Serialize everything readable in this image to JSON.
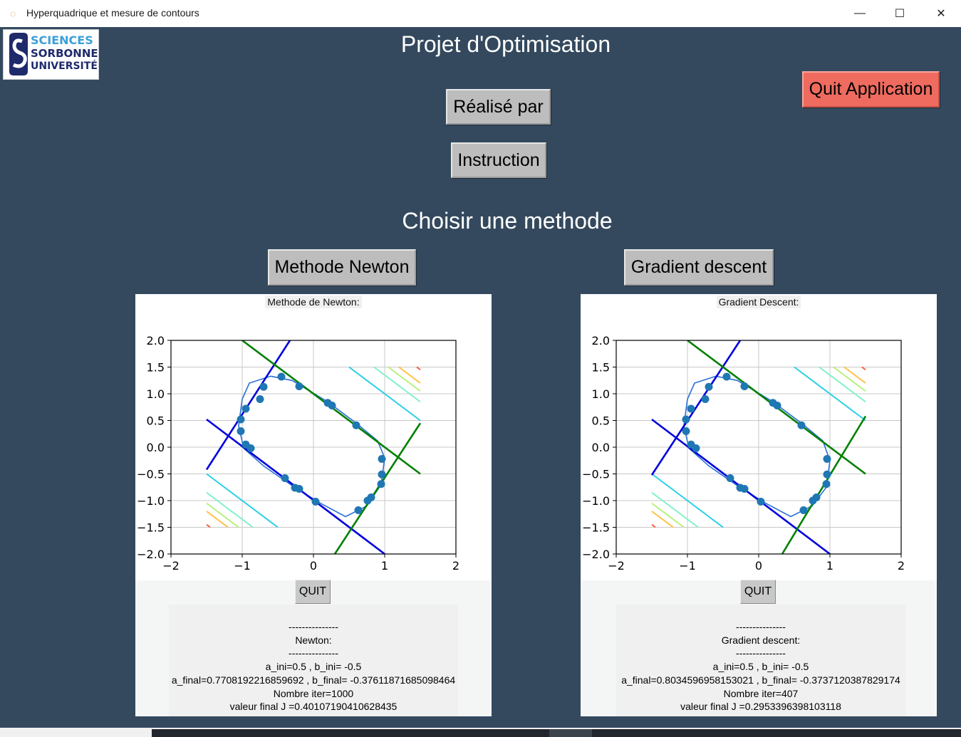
{
  "window": {
    "title": "Hyperquadrique et mesure de contours",
    "app_icon": "swirl-icon",
    "minimize_glyph": "—",
    "maximize_glyph": "☐",
    "close_glyph": "✕"
  },
  "logo": {
    "line1": "SCIENCES",
    "line2": "SORBONNE",
    "line3": "UNIVERSITÉ",
    "colors": {
      "navy": "#1f2a6b",
      "blue": "#3aa0d9"
    }
  },
  "header": {
    "title": "Projet d'Optimisation"
  },
  "buttons": {
    "realise_par": "Réalisé par",
    "instruction": "Instruction",
    "quit_app": "Quit Application",
    "newton": "Methode Newton",
    "gradient": "Gradient descent"
  },
  "section": {
    "choose": "Choisir une methode"
  },
  "colors": {
    "background": "#34495e",
    "quit_button": "#ef6b5f",
    "button": "#bdbdbd"
  },
  "newton_panel": {
    "plot_title": "Methode de Newton:",
    "quit_label": "QUIT",
    "info_lines": [
      "---------------",
      "Newton:",
      "---------------",
      "a_ini=0.5 , b_ini= -0.5",
      "a_final=0.7708192216859692 , b_final= -0.37611871685098464",
      "Nombre iter=1000",
      "valeur final J =0.40107190410628435"
    ]
  },
  "gradient_panel": {
    "plot_title": "Gradient Descent:",
    "quit_label": "QUIT",
    "info_lines": [
      "---------------",
      "Gradient descent:",
      "---------------",
      "a_ini=0.5 , b_ini= -0.5",
      "a_final=0.8034596958153021 , b_final= -0.3737120387829174",
      "Nombre iter=407",
      "valeur final J =0.2953396398103118"
    ]
  },
  "chart_data": [
    {
      "type": "scatter",
      "title": "",
      "xlim": [
        -2,
        2
      ],
      "ylim": [
        -2,
        2
      ],
      "xticks": [
        "−2",
        "−1",
        "0",
        "1",
        "2"
      ],
      "yticks": [
        "2.0",
        "1.5",
        "1.0",
        "0.5",
        "0.0",
        "−0.5",
        "−1.0",
        "−1.5",
        "−2.0"
      ],
      "xtick_values": [
        -2,
        -1,
        0,
        1,
        2
      ],
      "ytick_values": [
        2,
        1.5,
        1,
        0.5,
        0,
        -0.5,
        -1,
        -1.5,
        -2
      ],
      "grid": true,
      "points": [
        [
          -0.45,
          1.32
        ],
        [
          -0.2,
          1.14
        ],
        [
          -0.7,
          1.13
        ],
        [
          -0.75,
          0.9
        ],
        [
          -0.95,
          0.72
        ],
        [
          -1.02,
          0.52
        ],
        [
          -1.02,
          0.3
        ],
        [
          -0.95,
          0.05
        ],
        [
          -0.88,
          -0.02
        ],
        [
          -0.4,
          -0.58
        ],
        [
          -0.26,
          -0.76
        ],
        [
          -0.2,
          -0.78
        ],
        [
          0.03,
          -1.02
        ],
        [
          0.2,
          0.83
        ],
        [
          0.26,
          0.78
        ],
        [
          0.6,
          0.41
        ],
        [
          0.96,
          -0.22
        ],
        [
          0.96,
          -0.51
        ],
        [
          0.95,
          -0.69
        ],
        [
          0.81,
          -0.94
        ],
        [
          0.76,
          -1.0
        ],
        [
          0.63,
          -1.18
        ]
      ],
      "curve": [
        [
          -1.0,
          0.9
        ],
        [
          -0.9,
          1.2
        ],
        [
          -0.6,
          1.33
        ],
        [
          -0.3,
          1.25
        ],
        [
          0.2,
          0.85
        ],
        [
          0.6,
          0.45
        ],
        [
          0.9,
          0.12
        ],
        [
          1.0,
          -0.2
        ],
        [
          0.95,
          -0.7
        ],
        [
          0.75,
          -1.1
        ],
        [
          0.45,
          -1.3
        ],
        [
          0.1,
          -1.05
        ],
        [
          -0.3,
          -0.72
        ],
        [
          -0.7,
          -0.35
        ],
        [
          -0.98,
          -0.02
        ],
        [
          -1.05,
          0.4
        ],
        [
          -1.0,
          0.9
        ]
      ],
      "lines": [
        {
          "color": "#0000dd",
          "points": [
            [
              -1.5,
              -0.42
            ],
            [
              -0.33,
              2.0
            ]
          ]
        },
        {
          "color": "#0000dd",
          "points": [
            [
              -1.5,
              0.52
            ],
            [
              1.0,
              -2.0
            ]
          ]
        },
        {
          "color": "#008000",
          "points": [
            [
              -1.0,
              2.0
            ],
            [
              1.5,
              -0.5
            ]
          ]
        },
        {
          "color": "#008000",
          "points": [
            [
              0.3,
              -2.0
            ],
            [
              1.5,
              0.45
            ]
          ]
        }
      ],
      "contours": [
        {
          "color": "#27d0e8",
          "points": [
            [
              0.5,
              1.5
            ],
            [
              1.5,
              0.5
            ]
          ]
        },
        {
          "color": "#27d0e8",
          "points": [
            [
              -1.5,
              -0.5
            ],
            [
              -0.5,
              -1.5
            ]
          ]
        },
        {
          "color": "#7ef2c7",
          "points": [
            [
              0.85,
              1.5
            ],
            [
              1.5,
              0.85
            ]
          ]
        },
        {
          "color": "#7ef2c7",
          "points": [
            [
              -1.5,
              -0.85
            ],
            [
              -0.85,
              -1.5
            ]
          ]
        },
        {
          "color": "#b6f07a",
          "points": [
            [
              1.05,
              1.5
            ],
            [
              1.5,
              1.05
            ]
          ]
        },
        {
          "color": "#b6f07a",
          "points": [
            [
              -1.5,
              -1.05
            ],
            [
              -1.05,
              -1.5
            ]
          ]
        },
        {
          "color": "#ffc042",
          "points": [
            [
              1.2,
              1.5
            ],
            [
              1.5,
              1.2
            ]
          ]
        },
        {
          "color": "#ffc042",
          "points": [
            [
              -1.5,
              -1.2
            ],
            [
              -1.2,
              -1.5
            ]
          ]
        },
        {
          "color": "#ff5a3c",
          "points": [
            [
              1.45,
              1.5
            ],
            [
              1.5,
              1.45
            ]
          ]
        },
        {
          "color": "#ff5a3c",
          "points": [
            [
              -1.5,
              -1.45
            ],
            [
              -1.45,
              -1.5
            ]
          ]
        }
      ],
      "point_color": "#1f77b4",
      "curve_color": "#2b6fd6"
    },
    {
      "type": "scatter",
      "title": "",
      "xlim": [
        -2,
        2
      ],
      "ylim": [
        -2,
        2
      ],
      "xticks": [
        "−2",
        "−1",
        "0",
        "1",
        "2"
      ],
      "yticks": [
        "2.0",
        "1.5",
        "1.0",
        "0.5",
        "0.0",
        "−0.5",
        "−1.0",
        "−1.5",
        "−2.0"
      ],
      "xtick_values": [
        -2,
        -1,
        0,
        1,
        2
      ],
      "ytick_values": [
        2,
        1.5,
        1,
        0.5,
        0,
        -0.5,
        -1,
        -1.5,
        -2
      ],
      "grid": true,
      "points": [
        [
          -0.45,
          1.32
        ],
        [
          -0.2,
          1.14
        ],
        [
          -0.7,
          1.13
        ],
        [
          -0.75,
          0.9
        ],
        [
          -0.95,
          0.72
        ],
        [
          -1.02,
          0.52
        ],
        [
          -1.02,
          0.3
        ],
        [
          -0.95,
          0.05
        ],
        [
          -0.88,
          -0.02
        ],
        [
          -0.4,
          -0.58
        ],
        [
          -0.26,
          -0.76
        ],
        [
          -0.2,
          -0.78
        ],
        [
          0.03,
          -1.02
        ],
        [
          0.2,
          0.83
        ],
        [
          0.26,
          0.78
        ],
        [
          0.6,
          0.41
        ],
        [
          0.96,
          -0.22
        ],
        [
          0.96,
          -0.51
        ],
        [
          0.95,
          -0.69
        ],
        [
          0.81,
          -0.94
        ],
        [
          0.76,
          -1.0
        ],
        [
          0.63,
          -1.18
        ]
      ],
      "curve": [
        [
          -1.0,
          0.9
        ],
        [
          -0.9,
          1.2
        ],
        [
          -0.6,
          1.33
        ],
        [
          -0.3,
          1.25
        ],
        [
          0.2,
          0.85
        ],
        [
          0.6,
          0.45
        ],
        [
          0.9,
          0.12
        ],
        [
          1.0,
          -0.25
        ],
        [
          0.95,
          -0.75
        ],
        [
          0.75,
          -1.1
        ],
        [
          0.45,
          -1.3
        ],
        [
          0.1,
          -1.05
        ],
        [
          -0.3,
          -0.72
        ],
        [
          -0.7,
          -0.35
        ],
        [
          -0.98,
          -0.02
        ],
        [
          -1.05,
          0.4
        ],
        [
          -1.0,
          0.9
        ]
      ],
      "lines": [
        {
          "color": "#0000dd",
          "points": [
            [
              -1.5,
              -0.52
            ],
            [
              -0.26,
              2.0
            ]
          ]
        },
        {
          "color": "#0000dd",
          "points": [
            [
              -1.5,
              0.52
            ],
            [
              1.0,
              -2.0
            ]
          ]
        },
        {
          "color": "#008000",
          "points": [
            [
              -1.0,
              2.0
            ],
            [
              1.5,
              -0.5
            ]
          ]
        },
        {
          "color": "#008000",
          "points": [
            [
              0.33,
              -2.0
            ],
            [
              1.5,
              0.58
            ]
          ]
        }
      ],
      "contours": [
        {
          "color": "#27d0e8",
          "points": [
            [
              0.5,
              1.5
            ],
            [
              1.5,
              0.5
            ]
          ]
        },
        {
          "color": "#27d0e8",
          "points": [
            [
              -1.5,
              -0.5
            ],
            [
              -0.5,
              -1.5
            ]
          ]
        },
        {
          "color": "#7ef2c7",
          "points": [
            [
              0.85,
              1.5
            ],
            [
              1.5,
              0.85
            ]
          ]
        },
        {
          "color": "#7ef2c7",
          "points": [
            [
              -1.5,
              -0.85
            ],
            [
              -0.85,
              -1.5
            ]
          ]
        },
        {
          "color": "#b6f07a",
          "points": [
            [
              1.05,
              1.5
            ],
            [
              1.5,
              1.05
            ]
          ]
        },
        {
          "color": "#b6f07a",
          "points": [
            [
              -1.5,
              -1.05
            ],
            [
              -1.05,
              -1.5
            ]
          ]
        },
        {
          "color": "#ffc042",
          "points": [
            [
              1.2,
              1.5
            ],
            [
              1.5,
              1.2
            ]
          ]
        },
        {
          "color": "#ffc042",
          "points": [
            [
              -1.5,
              -1.2
            ],
            [
              -1.2,
              -1.5
            ]
          ]
        },
        {
          "color": "#ff5a3c",
          "points": [
            [
              1.45,
              1.5
            ],
            [
              1.5,
              1.45
            ]
          ]
        },
        {
          "color": "#ff5a3c",
          "points": [
            [
              -1.5,
              -1.45
            ],
            [
              -1.45,
              -1.5
            ]
          ]
        }
      ],
      "point_color": "#1f77b4",
      "curve_color": "#2b6fd6"
    }
  ]
}
